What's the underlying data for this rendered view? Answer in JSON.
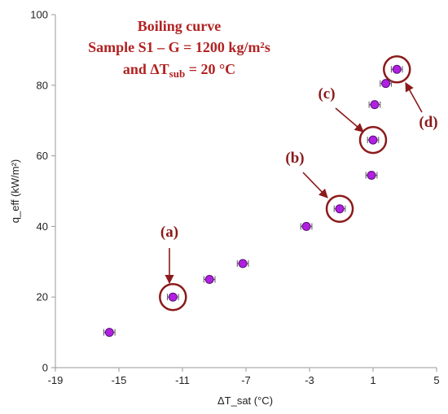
{
  "chart_data": {
    "type": "scatter",
    "title_lines": [
      "Boiling curve",
      "Sample S1 – G = 1200 kg/m²s"
    ],
    "title_line3": {
      "prefix": "and ΔT",
      "subscript": "sub",
      "suffix": " = 20 °C"
    },
    "xlabel": "ΔT_sat (°C)",
    "ylabel": "q_eff (kW/m²)",
    "xlim": [
      -19,
      5
    ],
    "ylim": [
      0,
      100
    ],
    "xticks": [
      -19,
      -15,
      -11,
      -7,
      -3,
      1,
      5
    ],
    "yticks": [
      0,
      20,
      40,
      60,
      80,
      100
    ],
    "xerror": 0.35,
    "points": [
      {
        "x": -15.6,
        "y": 10
      },
      {
        "x": -11.6,
        "y": 20
      },
      {
        "x": -9.3,
        "y": 25
      },
      {
        "x": -7.2,
        "y": 29.5
      },
      {
        "x": -3.2,
        "y": 40
      },
      {
        "x": -1.1,
        "y": 45
      },
      {
        "x": 0.9,
        "y": 54.5
      },
      {
        "x": 1.0,
        "y": 64.5
      },
      {
        "x": 1.1,
        "y": 74.5
      },
      {
        "x": 1.8,
        "y": 80.5
      },
      {
        "x": 2.5,
        "y": 84.5
      }
    ],
    "annotations": [
      {
        "label": "(a)",
        "x": -11.6,
        "y": 20
      },
      {
        "label": "(b)",
        "x": -1.1,
        "y": 45
      },
      {
        "label": "(c)",
        "x": 1.0,
        "y": 64.5
      },
      {
        "label": "(d)",
        "x": 2.5,
        "y": 84.5
      }
    ],
    "colors": {
      "marker_fill": "#b020e0",
      "marker_edge": "#5a0f7a",
      "callout": "#8b1a1a",
      "title": "#b22222",
      "axis": "#999999"
    }
  }
}
